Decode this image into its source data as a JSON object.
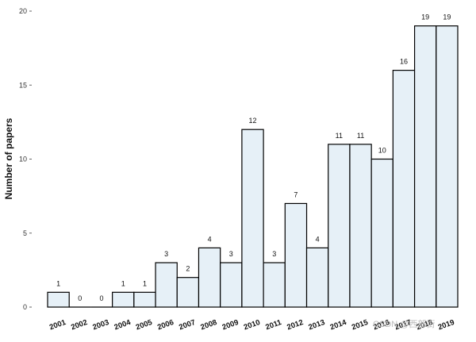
{
  "chart_data": {
    "type": "bar",
    "title": "",
    "xlabel": "",
    "ylabel": "Number of papers",
    "categories": [
      "2001",
      "2002",
      "2003",
      "2004",
      "2005",
      "2006",
      "2007",
      "2008",
      "2009",
      "2010",
      "2011",
      "2012",
      "2013",
      "2014",
      "2015",
      "2016",
      "2017",
      "2018",
      "2019"
    ],
    "values": [
      1,
      0,
      0,
      1,
      1,
      3,
      2,
      4,
      3,
      12,
      3,
      7,
      4,
      11,
      11,
      10,
      16,
      19,
      19
    ],
    "ylim": [
      0,
      20
    ],
    "yticks": [
      0,
      5,
      10,
      15,
      20
    ],
    "grid": false,
    "bar_fill": "#e6f0f7",
    "bar_stroke": "#000000"
  },
  "watermark": "CSDN @西部街"
}
